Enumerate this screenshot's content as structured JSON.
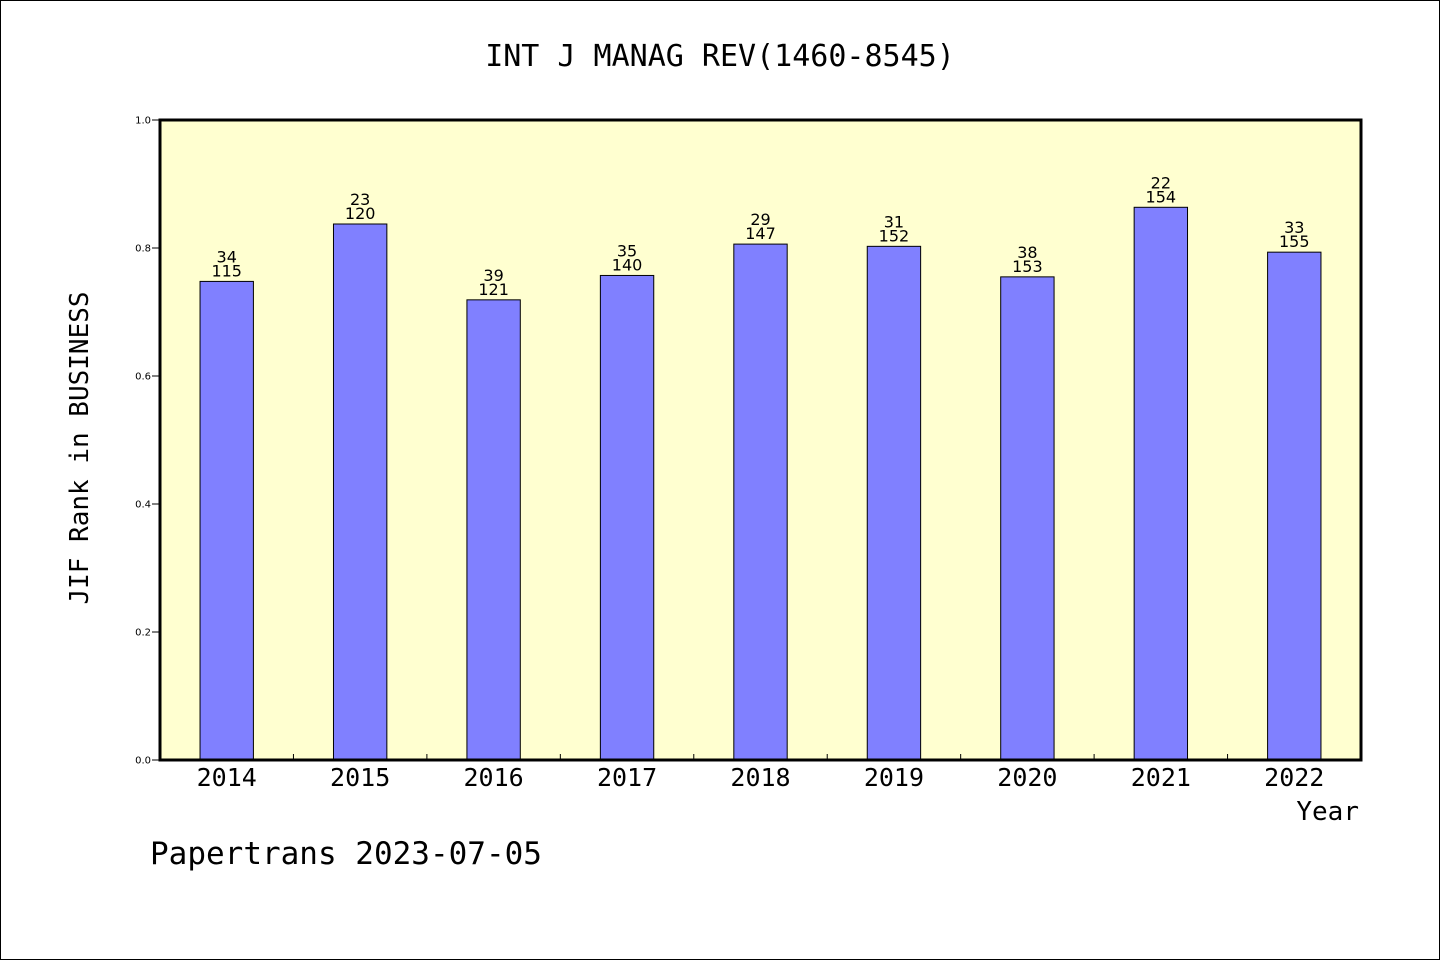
{
  "chart_data": {
    "type": "bar",
    "title": "INT J MANAG REV(1460-8545)",
    "xlabel": "Year",
    "ylabel": "JIF Rank in BUSINESS",
    "ylim": [
      0,
      1.0
    ],
    "yticks": [
      "0.0",
      "0.2",
      "0.4",
      "0.6",
      "0.8",
      "1.0"
    ],
    "categories": [
      "2014",
      "2015",
      "2016",
      "2017",
      "2018",
      "2019",
      "2020",
      "2021",
      "2022"
    ],
    "values": [
      0.7478,
      0.8375,
      0.719,
      0.7571,
      0.8061,
      0.8026,
      0.7549,
      0.8636,
      0.7935
    ],
    "rank": [
      "34",
      "23",
      "39",
      "35",
      "29",
      "31",
      "38",
      "22",
      "33"
    ],
    "total": [
      "115",
      "120",
      "121",
      "140",
      "147",
      "152",
      "153",
      "154",
      "155"
    ],
    "grid": false,
    "colors": {
      "bar": "#8080ff",
      "plot_bg": "#ffffd0",
      "edge": "#000000"
    }
  },
  "footer": "Papertrans 2023-07-05"
}
